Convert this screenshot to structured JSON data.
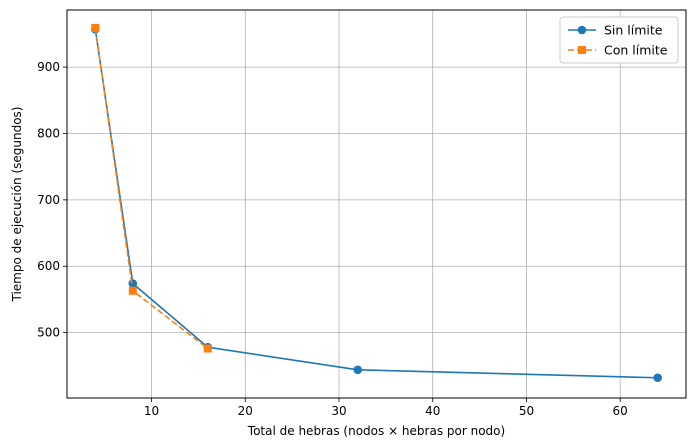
{
  "chart_data": {
    "type": "line",
    "title": "",
    "xlabel": "Total de hebras (nodos × hebras por nodo)",
    "ylabel": "Tiempo de ejecución (segundos)",
    "xlim": [
      0.98,
      67.02
    ],
    "ylim": [
      401.5,
      986
    ],
    "xticks": [
      10,
      20,
      30,
      40,
      50,
      60
    ],
    "yticks": [
      500,
      600,
      700,
      800,
      900
    ],
    "grid": true,
    "legend_position": "top-right",
    "series": [
      {
        "name": "Sin límite",
        "color": "#1f77b4",
        "linestyle": "solid",
        "marker": "circle",
        "x": [
          4,
          8,
          16,
          32,
          64
        ],
        "y": [
          957,
          574,
          478,
          444,
          432
        ]
      },
      {
        "name": "Con límite",
        "color": "#ff7f0e",
        "linestyle": "dashed",
        "marker": "square",
        "x": [
          4,
          8,
          16
        ],
        "y": [
          959,
          563,
          476
        ]
      }
    ]
  }
}
